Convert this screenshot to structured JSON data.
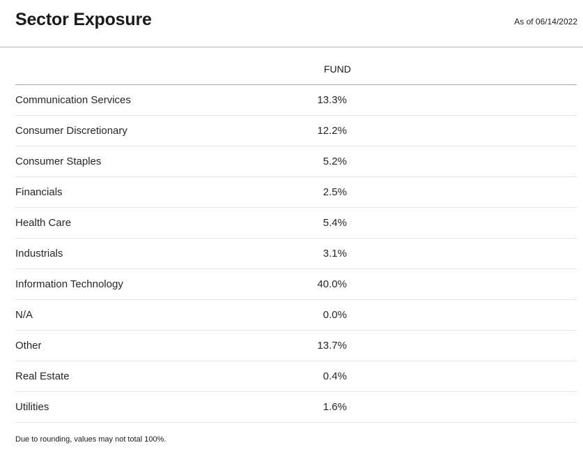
{
  "header": {
    "title": "Sector Exposure",
    "as_of": "As of 06/14/2022"
  },
  "table": {
    "column_header": "FUND",
    "rows": [
      {
        "sector": "Communication Services",
        "fund": "13.3%"
      },
      {
        "sector": "Consumer Discretionary",
        "fund": "12.2%"
      },
      {
        "sector": "Consumer Staples",
        "fund": "5.2%"
      },
      {
        "sector": "Financials",
        "fund": "2.5%"
      },
      {
        "sector": "Health Care",
        "fund": "5.4%"
      },
      {
        "sector": "Industrials",
        "fund": "3.1%"
      },
      {
        "sector": "Information Technology",
        "fund": "40.0%"
      },
      {
        "sector": "N/A",
        "fund": "0.0%"
      },
      {
        "sector": "Other",
        "fund": "13.7%"
      },
      {
        "sector": "Real Estate",
        "fund": "0.4%"
      },
      {
        "sector": "Utilities",
        "fund": "1.6%"
      }
    ]
  },
  "footnote": "Due to rounding, values may not total 100%."
}
